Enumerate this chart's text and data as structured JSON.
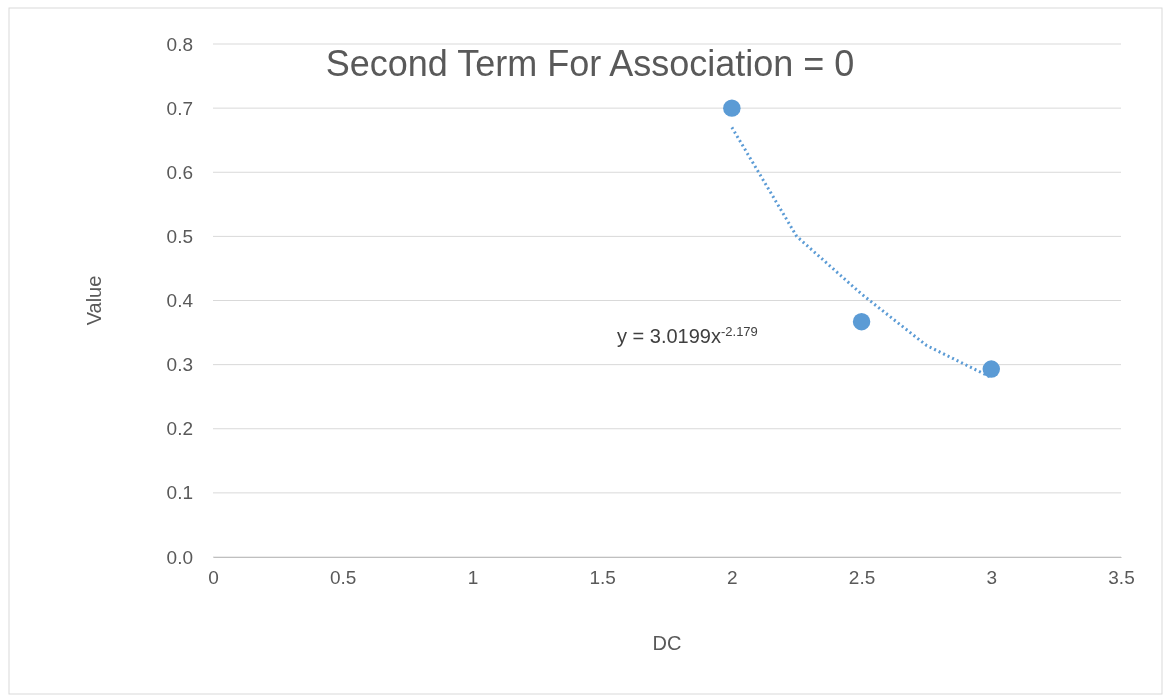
{
  "chart_data": {
    "type": "scatter",
    "title": "Second Term For Association = 0",
    "xlabel": "DC",
    "ylabel": "Value",
    "xlim": [
      0,
      3.5
    ],
    "xticks": [
      0,
      0.5,
      1,
      1.5,
      2,
      2.5,
      3,
      3.5
    ],
    "ylim": [
      0,
      0.8
    ],
    "yticks": [
      {
        "value": 0,
        "label": "0.0"
      },
      0.1,
      0.2,
      0.3,
      0.4,
      0.5,
      0.6,
      0.7,
      0.8
    ],
    "grid": "y",
    "marker": "circle",
    "annotations": [
      "y = 3.0199x$^{-2.179}$"
    ],
    "series": [
      {
        "color": "#5b9bd5",
        "x": [
          2,
          2.5,
          3
        ],
        "values": [
          0.7,
          0.367,
          0.293
        ]
      },
      {
        "type": "line",
        "color": "#5b9bd5",
        "line_style": "dotted",
        "marker": "none",
        "x": [
          2,
          2.25,
          2.5,
          2.75,
          3
        ],
        "values": [
          0.67,
          0.5,
          0.41,
          0.33,
          0.28
        ]
      }
    ]
  }
}
